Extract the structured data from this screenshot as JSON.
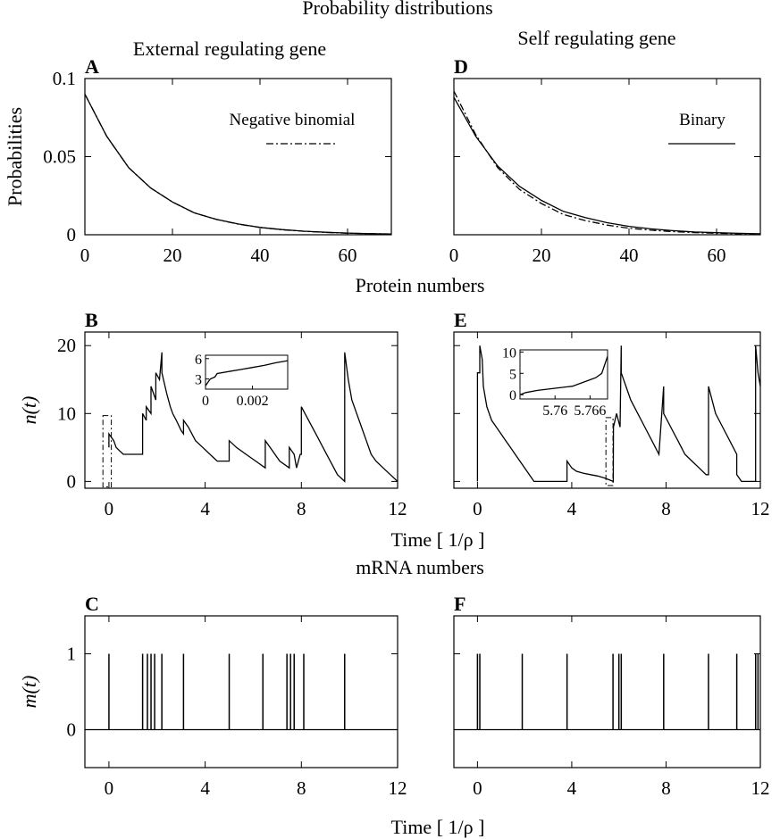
{
  "figure": {
    "title": "Probability distributions",
    "column_titles": [
      "External regulating gene",
      "Self regulating gene"
    ],
    "row2_header": "Protein numbers",
    "row3_header": "mRNA numbers",
    "time_label": "Time [ 1/ρ ]"
  },
  "chart_data": [
    {
      "panel": "A",
      "type": "line",
      "ylabel": "Probabilities",
      "xlabel": "",
      "xlim": [
        0,
        70
      ],
      "ylim": [
        0,
        0.1
      ],
      "xticks": [
        "0",
        "20",
        "40",
        "60"
      ],
      "xtick_values": [
        0,
        20,
        40,
        60
      ],
      "yticks": [
        "0",
        "0.05",
        "0.1"
      ],
      "ytick_values": [
        0,
        0.05,
        0.1
      ],
      "legend": "Negative binomial",
      "series": [
        {
          "style": "solid",
          "x": [
            0,
            5,
            10,
            15,
            20,
            25,
            30,
            35,
            40,
            45,
            50,
            55,
            60,
            65,
            70
          ],
          "y": [
            0.09,
            0.063,
            0.043,
            0.03,
            0.021,
            0.014,
            0.0099,
            0.0069,
            0.0047,
            0.0033,
            0.0023,
            0.0016,
            0.0011,
            0.0007,
            0.0005
          ]
        },
        {
          "name": "Negative binomial",
          "style": "dashdot",
          "x": [
            0,
            5,
            10,
            15,
            20,
            25,
            30,
            35,
            40,
            45,
            50,
            55,
            60,
            65,
            70
          ],
          "y": [
            0.09,
            0.063,
            0.043,
            0.03,
            0.021,
            0.014,
            0.0098,
            0.0068,
            0.0047,
            0.0032,
            0.0022,
            0.0015,
            0.001,
            0.0007,
            0.0005
          ]
        }
      ]
    },
    {
      "panel": "D",
      "type": "line",
      "xlim": [
        0,
        70
      ],
      "ylim": [
        0,
        0.1
      ],
      "xticks": [
        "0",
        "20",
        "40",
        "60"
      ],
      "xtick_values": [
        0,
        20,
        40,
        60
      ],
      "legend": "Binary",
      "series": [
        {
          "name": "Binary",
          "style": "solid",
          "x": [
            0,
            5,
            10,
            15,
            20,
            25,
            30,
            35,
            40,
            45,
            50,
            55,
            60,
            65,
            70
          ],
          "y": [
            0.088,
            0.063,
            0.044,
            0.031,
            0.022,
            0.015,
            0.011,
            0.0077,
            0.0054,
            0.0038,
            0.0026,
            0.0018,
            0.0013,
            0.0009,
            0.0006
          ]
        },
        {
          "style": "dashdot",
          "x": [
            0,
            5,
            10,
            15,
            20,
            25,
            30,
            35,
            40,
            45,
            50,
            55,
            60,
            65,
            70
          ],
          "y": [
            0.092,
            0.064,
            0.043,
            0.029,
            0.02,
            0.013,
            0.0091,
            0.0062,
            0.0042,
            0.0029,
            0.002,
            0.0014,
            0.0009,
            0.0006,
            0.0004
          ]
        }
      ]
    },
    {
      "panel": "B",
      "type": "line",
      "ylabel": "n(t)",
      "xlim": [
        -1,
        12
      ],
      "ylim": [
        -1,
        22
      ],
      "xticks": [
        "0",
        "4",
        "8",
        "12"
      ],
      "xtick_values": [
        0,
        4,
        8,
        12
      ],
      "yticks": [
        "0",
        "10",
        "20"
      ],
      "ytick_values": [
        0,
        10,
        20
      ],
      "series": [
        {
          "x": [
            0,
            0,
            0.2,
            0.3,
            0.3,
            0.45,
            0.6,
            1.0,
            1.4,
            1.4,
            1.55,
            1.55,
            1.75,
            1.75,
            1.95,
            1.95,
            2.1,
            2.2,
            2.2,
            2.4,
            2.55,
            2.65,
            2.8,
            3.0,
            3.1,
            3.1,
            3.3,
            3.6,
            3.9,
            4.2,
            4.5,
            5.0,
            5.0,
            5.3,
            5.7,
            6.1,
            6.5,
            6.5,
            6.7,
            7.1,
            7.5,
            7.5,
            7.7,
            7.8,
            7.8,
            7.95,
            8.0,
            8.0,
            8.3,
            8.6,
            8.9,
            9.2,
            9.5,
            9.8,
            9.8,
            9.95,
            10.1,
            10.3,
            10.5,
            10.7,
            10.9,
            11.1,
            11.4,
            11.7,
            12.0
          ],
          "y": [
            5,
            7,
            6,
            5,
            5,
            4.5,
            4,
            4,
            4,
            10,
            9,
            11,
            10,
            14,
            12,
            16,
            15,
            19,
            16,
            13,
            11,
            10,
            9,
            7.5,
            7,
            9,
            8,
            6,
            5,
            4,
            3,
            3,
            6,
            5,
            4,
            3,
            2,
            6,
            5,
            3,
            2,
            5,
            4,
            2,
            2,
            4,
            4,
            11,
            9,
            7,
            5,
            3,
            1,
            0,
            19,
            15,
            12,
            10,
            8,
            6,
            4,
            3,
            2,
            1,
            0
          ]
        }
      ],
      "inset": {
        "xlim": [
          0,
          0.0035
        ],
        "ylim": [
          1.5,
          6.5
        ],
        "xticks": [
          "0",
          "0.002"
        ],
        "xtick_values": [
          0,
          0.002
        ],
        "yticks": [
          "3",
          "6"
        ],
        "ytick_values": [
          3,
          6
        ],
        "series": [
          {
            "x": [
              0,
              0.0002,
              0.0004,
              0.0005,
              0.001,
              0.0015,
              0.002,
              0.0025,
              0.003,
              0.0035
            ],
            "y": [
              2,
              3,
              3.3,
              3.8,
              4.1,
              4.4,
              4.7,
              5.0,
              5.4,
              5.7
            ]
          }
        ]
      }
    },
    {
      "panel": "E",
      "type": "line",
      "xlim": [
        -1,
        12
      ],
      "ylim": [
        -1,
        22
      ],
      "xticks": [
        "0",
        "4",
        "8",
        "12"
      ],
      "xtick_values": [
        0,
        4,
        8,
        12
      ],
      "series": [
        {
          "x": [
            0,
            0,
            0.1,
            0.1,
            0.2,
            0.25,
            0.4,
            0.6,
            0.8,
            1.0,
            1.2,
            1.4,
            1.6,
            1.8,
            2.0,
            2.2,
            2.4,
            2.6,
            2.8,
            3.0,
            3.2,
            3.4,
            3.6,
            3.8,
            3.8,
            4.0,
            4.2,
            4.5,
            4.8,
            5.1,
            5.4,
            5.76,
            5.77,
            5.9,
            6.05,
            6.1,
            6.1,
            6.3,
            6.5,
            6.8,
            7.1,
            7.4,
            7.7,
            7.9,
            7.9,
            8.2,
            8.5,
            8.8,
            9.1,
            9.4,
            9.7,
            9.8,
            9.8,
            10.1,
            10.4,
            10.7,
            11.0,
            11.0,
            11.2,
            11.5,
            11.8,
            11.8,
            11.9,
            12.0
          ],
          "y": [
            0,
            16,
            16,
            20,
            18,
            14,
            11,
            9,
            8,
            7,
            6,
            5,
            4,
            3,
            2,
            1,
            0,
            0,
            0,
            0,
            0,
            0,
            0,
            0,
            3,
            2,
            1.5,
            1.2,
            1,
            0.8,
            0.5,
            0,
            8,
            10,
            8,
            20,
            16,
            14,
            12,
            10,
            8,
            6,
            4,
            14,
            10,
            8,
            6,
            4,
            3,
            2,
            1,
            1,
            14,
            10,
            8,
            6,
            4,
            1,
            0,
            0,
            0,
            20,
            16,
            14
          ]
        }
      ],
      "inset": {
        "xlim": [
          5.754,
          5.769
        ],
        "ylim": [
          -1,
          10.5
        ],
        "xticks": [
          "5.76",
          "5.766"
        ],
        "xtick_values": [
          5.76,
          5.766
        ],
        "yticks": [
          "0",
          "5",
          "10"
        ],
        "ytick_values": [
          0,
          5,
          10
        ],
        "series": [
          {
            "x": [
              5.754,
              5.755,
              5.757,
              5.76,
              5.763,
              5.765,
              5.766,
              5.767,
              5.768,
              5.769
            ],
            "y": [
              0,
              0.5,
              1,
              1.5,
              2,
              3,
              3.5,
              4,
              5,
              9
            ]
          }
        ]
      }
    },
    {
      "panel": "C",
      "type": "line",
      "ylabel": "m(t)",
      "xlim": [
        -1,
        12
      ],
      "ylim": [
        -0.5,
        1.5
      ],
      "xticks": [
        "0",
        "4",
        "8",
        "12"
      ],
      "xtick_values": [
        0,
        4,
        8,
        12
      ],
      "yticks": [
        "0",
        "1"
      ],
      "ytick_values": [
        0,
        1
      ],
      "spikes": [
        0,
        1.4,
        1.6,
        1.75,
        1.9,
        2.2,
        3.1,
        5.0,
        6.4,
        7.4,
        7.55,
        7.7,
        8.1,
        9.8
      ]
    },
    {
      "panel": "F",
      "type": "line",
      "xlim": [
        -1,
        12
      ],
      "ylim": [
        -0.5,
        1.5
      ],
      "xticks": [
        "0",
        "4",
        "8",
        "12"
      ],
      "xtick_values": [
        0,
        4,
        8,
        12
      ],
      "spikes": [
        0,
        0.1,
        1.9,
        3.8,
        5.75,
        6.0,
        6.1,
        7.9,
        9.8,
        11.0,
        11.8,
        11.9
      ]
    }
  ]
}
